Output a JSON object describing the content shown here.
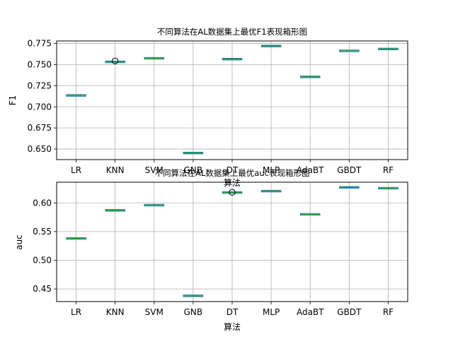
{
  "chart_data": [
    {
      "type": "box",
      "title": "不同算法在AL数据集上最优F1表现箱形图",
      "xlabel": "算法",
      "ylabel": "F1",
      "categories": [
        "LR",
        "KNN",
        "SVM",
        "GNB",
        "DT",
        "MLP",
        "AdaBT",
        "GBDT",
        "RF"
      ],
      "median": [
        0.7135,
        0.7532,
        0.7575,
        0.6453,
        0.7565,
        0.772,
        0.7355,
        0.7663,
        0.7685
      ],
      "outliers": [
        [],
        [
          0.7543
        ],
        [],
        [],
        [],
        [],
        [],
        [],
        []
      ],
      "ylim": [
        0.6375,
        0.778
      ],
      "yticks": [
        "0.650",
        "0.675",
        "0.700",
        "0.725",
        "0.750",
        "0.775"
      ],
      "grid": true,
      "colors": {
        "box": "#1f77b4",
        "median": "#2ca02c",
        "whisker": "#000000"
      }
    },
    {
      "type": "box",
      "title": "不同算法在AL数据集上最优auc表现箱形图",
      "xlabel": "算法",
      "ylabel": "auc",
      "categories": [
        "LR",
        "KNN",
        "SVM",
        "GNB",
        "DT",
        "MLP",
        "AdaBT",
        "GBDT",
        "RF"
      ],
      "median": [
        0.538,
        0.587,
        0.596,
        0.438,
        0.618,
        0.6205,
        0.58,
        0.627,
        0.6255
      ],
      "outliers": [
        [],
        [],
        [],
        [],
        [
          0.6185
        ],
        [],
        [],
        [],
        []
      ],
      "ylim": [
        0.428,
        0.636
      ],
      "yticks": [
        "0.45",
        "0.50",
        "0.55",
        "0.60"
      ],
      "grid": true,
      "colors": {
        "box": "#1f77b4",
        "median": "#2ca02c",
        "whisker": "#000000"
      }
    }
  ]
}
